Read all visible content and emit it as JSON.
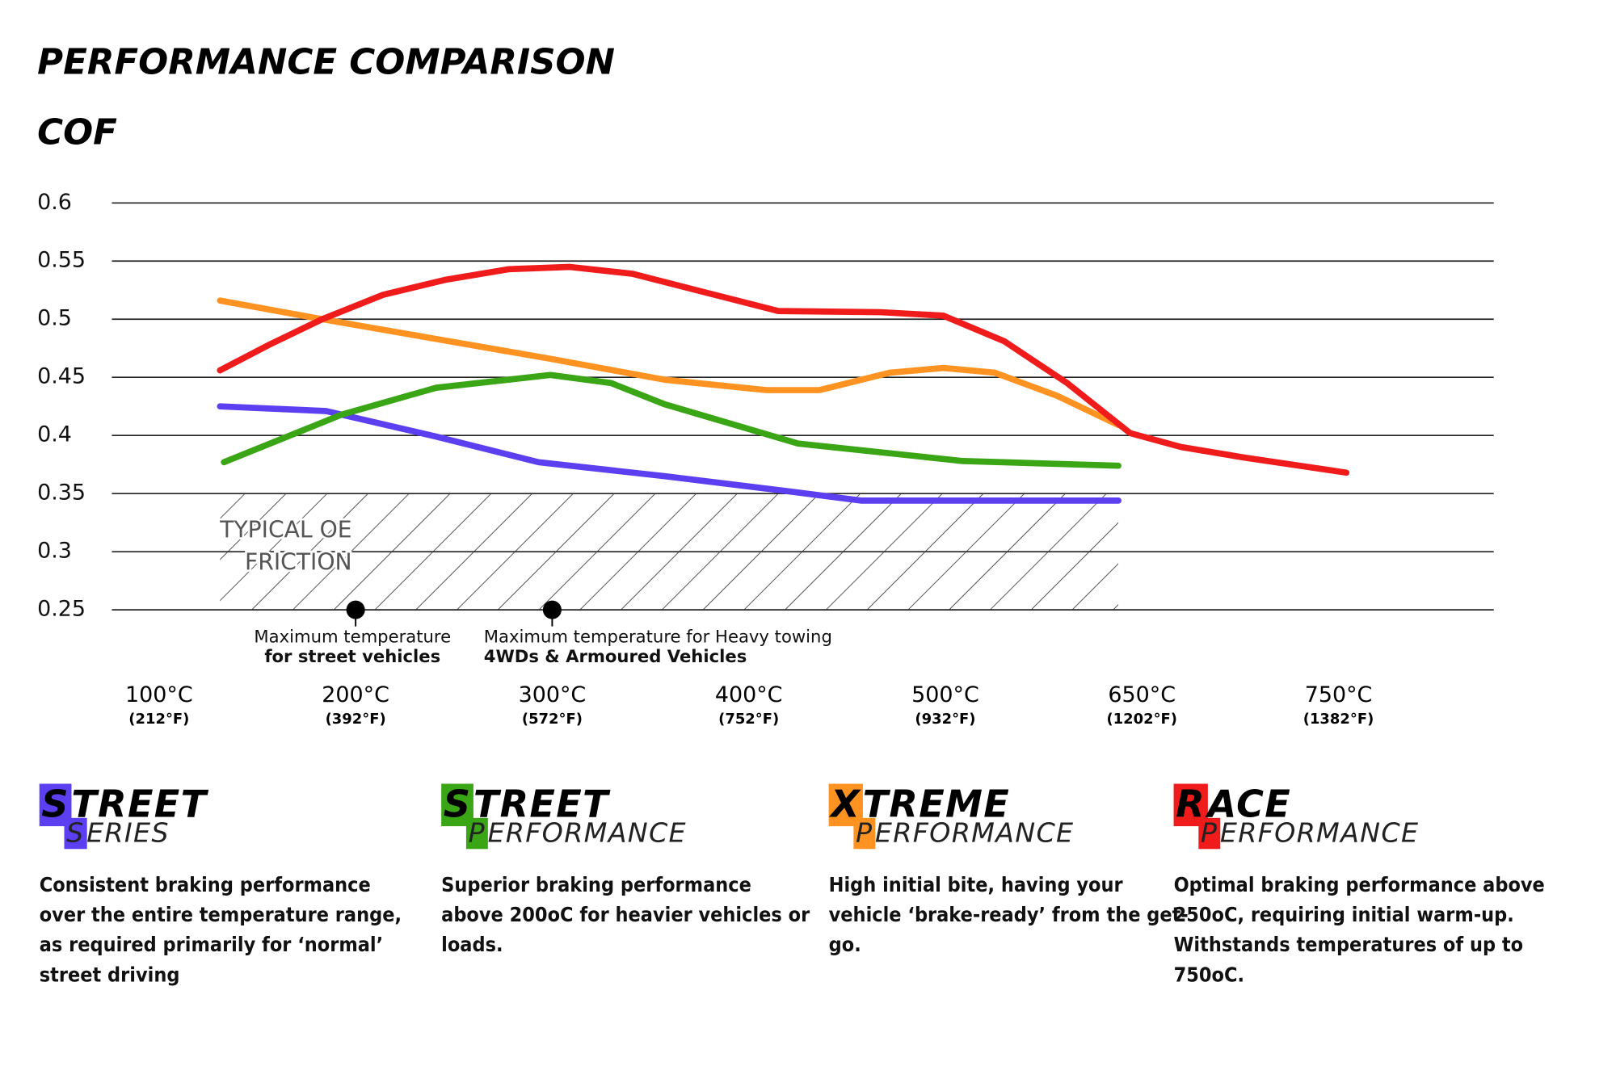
{
  "chart_data": {
    "type": "line",
    "title": "PERFORMANCE COMPARISON",
    "y_label": "COF",
    "categories": [
      "100°C",
      "200°C",
      "300°C",
      "400°C",
      "500°C",
      "650°C",
      "750°C"
    ],
    "category_sublabels": [
      "(212°F)",
      "(392°F)",
      "(572°F)",
      "(752°F)",
      "(932°F)",
      "(1202°F)",
      "(1382°F)"
    ],
    "xlim": [
      -0.24,
      6.79
    ],
    "ylim": [
      0.25,
      0.6
    ],
    "yticks": [
      0.6,
      0.55,
      0.5,
      0.45,
      0.4,
      0.35,
      0.3,
      0.25
    ],
    "grid": true,
    "series": [
      {
        "name": "RACE PERFORMANCE",
        "color": "#f01c1c",
        "x": [
          0.31,
          0.56,
          0.83,
          1.14,
          1.46,
          1.78,
          2.09,
          2.41,
          2.78,
          3.15,
          3.67,
          3.99,
          4.3,
          4.62,
          4.94,
          5.2,
          5.52,
          6.04
        ],
        "values": [
          0.456,
          0.478,
          0.5,
          0.521,
          0.534,
          0.543,
          0.545,
          0.539,
          0.523,
          0.507,
          0.506,
          0.503,
          0.481,
          0.445,
          0.402,
          0.39,
          0.381,
          0.368
        ]
      },
      {
        "name": "XTREME PERFORMANCE",
        "color": "#ff9322",
        "x": [
          0.31,
          0.83,
          1.41,
          1.99,
          2.57,
          3.09,
          3.36,
          3.72,
          3.99,
          4.25,
          4.57,
          4.88
        ],
        "values": [
          0.516,
          0.5,
          0.483,
          0.466,
          0.448,
          0.439,
          0.439,
          0.454,
          0.458,
          0.454,
          0.434,
          0.409
        ]
      },
      {
        "name": "STREET PERFORMANCE",
        "color": "#3aa515",
        "x": [
          0.33,
          0.93,
          1.41,
          1.99,
          2.3,
          2.57,
          3.25,
          4.09,
          4.88
        ],
        "values": [
          0.377,
          0.418,
          0.441,
          0.452,
          0.445,
          0.427,
          0.393,
          0.378,
          0.374
        ]
      },
      {
        "name": "STREET SERIES",
        "color": "#5b3ff0",
        "x": [
          0.31,
          0.85,
          1.41,
          1.93,
          2.57,
          3.2,
          3.57,
          4.88
        ],
        "values": [
          0.425,
          0.421,
          0.399,
          0.377,
          0.365,
          0.352,
          0.344,
          0.344
        ]
      }
    ],
    "band": {
      "lines": [
        "TYPICAL OE",
        "FRICTION"
      ],
      "x": [
        0.31,
        4.88
      ],
      "y": [
        0.25,
        0.35
      ]
    },
    "annotations": [
      {
        "x": 1,
        "y": 0.25,
        "lines": [
          "Maximum temperature",
          "for street vehicles"
        ]
      },
      {
        "x": 2,
        "y": 0.25,
        "lines": [
          "Maximum temperature for Heavy towing",
          "4WDs & Armoured Vehicles"
        ]
      }
    ]
  },
  "products": [
    {
      "top": "STREET",
      "bottom": "SERIES",
      "color": "#5b3ff0",
      "description": "Consistent braking performance over the entire temperature range, as required primarily for ‘normal’ street driving"
    },
    {
      "top": "STREET",
      "bottom": "PERFORMANCE",
      "color": "#3aa515",
      "description": "Superior braking performance above 200oC for heavier vehicles or loads."
    },
    {
      "top": "XTREME",
      "bottom": "PERFORMANCE",
      "color": "#ff9322",
      "description": "High initial bite, having your vehicle ‘brake-ready’ from the get-go."
    },
    {
      "top": "RACE",
      "bottom": "PERFORMANCE",
      "color": "#f01c1c",
      "description": "Optimal braking performance above 250oC, requiring initial warm-up. Withstands temperatures of up to 750oC."
    }
  ]
}
